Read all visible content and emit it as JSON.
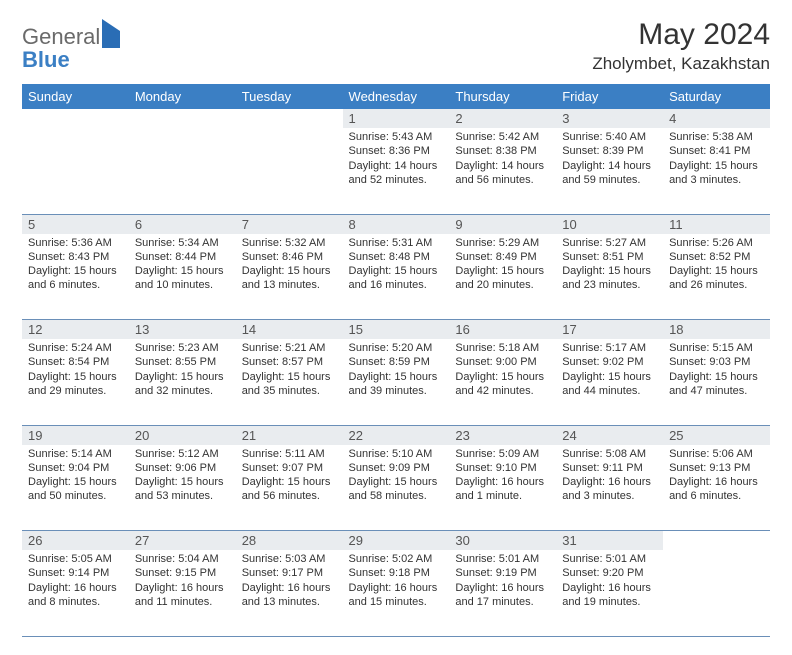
{
  "brand": {
    "part1": "General",
    "part2": "Blue"
  },
  "title": "May 2024",
  "location": "Zholymbet, Kazakhstan",
  "colors": {
    "header_bg": "#3b7fc4",
    "header_text": "#ffffff",
    "daynum_bg": "#e9ecef",
    "border": "#6a8fb8",
    "text": "#333333",
    "logo_gray": "#6a6a6a",
    "logo_blue": "#3b7fc4"
  },
  "weekdays": [
    "Sunday",
    "Monday",
    "Tuesday",
    "Wednesday",
    "Thursday",
    "Friday",
    "Saturday"
  ],
  "weeks": [
    [
      null,
      null,
      null,
      {
        "n": "1",
        "sr": "5:43 AM",
        "ss": "8:36 PM",
        "dl": "14 hours and 52 minutes."
      },
      {
        "n": "2",
        "sr": "5:42 AM",
        "ss": "8:38 PM",
        "dl": "14 hours and 56 minutes."
      },
      {
        "n": "3",
        "sr": "5:40 AM",
        "ss": "8:39 PM",
        "dl": "14 hours and 59 minutes."
      },
      {
        "n": "4",
        "sr": "5:38 AM",
        "ss": "8:41 PM",
        "dl": "15 hours and 3 minutes."
      }
    ],
    [
      {
        "n": "5",
        "sr": "5:36 AM",
        "ss": "8:43 PM",
        "dl": "15 hours and 6 minutes."
      },
      {
        "n": "6",
        "sr": "5:34 AM",
        "ss": "8:44 PM",
        "dl": "15 hours and 10 minutes."
      },
      {
        "n": "7",
        "sr": "5:32 AM",
        "ss": "8:46 PM",
        "dl": "15 hours and 13 minutes."
      },
      {
        "n": "8",
        "sr": "5:31 AM",
        "ss": "8:48 PM",
        "dl": "15 hours and 16 minutes."
      },
      {
        "n": "9",
        "sr": "5:29 AM",
        "ss": "8:49 PM",
        "dl": "15 hours and 20 minutes."
      },
      {
        "n": "10",
        "sr": "5:27 AM",
        "ss": "8:51 PM",
        "dl": "15 hours and 23 minutes."
      },
      {
        "n": "11",
        "sr": "5:26 AM",
        "ss": "8:52 PM",
        "dl": "15 hours and 26 minutes."
      }
    ],
    [
      {
        "n": "12",
        "sr": "5:24 AM",
        "ss": "8:54 PM",
        "dl": "15 hours and 29 minutes."
      },
      {
        "n": "13",
        "sr": "5:23 AM",
        "ss": "8:55 PM",
        "dl": "15 hours and 32 minutes."
      },
      {
        "n": "14",
        "sr": "5:21 AM",
        "ss": "8:57 PM",
        "dl": "15 hours and 35 minutes."
      },
      {
        "n": "15",
        "sr": "5:20 AM",
        "ss": "8:59 PM",
        "dl": "15 hours and 39 minutes."
      },
      {
        "n": "16",
        "sr": "5:18 AM",
        "ss": "9:00 PM",
        "dl": "15 hours and 42 minutes."
      },
      {
        "n": "17",
        "sr": "5:17 AM",
        "ss": "9:02 PM",
        "dl": "15 hours and 44 minutes."
      },
      {
        "n": "18",
        "sr": "5:15 AM",
        "ss": "9:03 PM",
        "dl": "15 hours and 47 minutes."
      }
    ],
    [
      {
        "n": "19",
        "sr": "5:14 AM",
        "ss": "9:04 PM",
        "dl": "15 hours and 50 minutes."
      },
      {
        "n": "20",
        "sr": "5:12 AM",
        "ss": "9:06 PM",
        "dl": "15 hours and 53 minutes."
      },
      {
        "n": "21",
        "sr": "5:11 AM",
        "ss": "9:07 PM",
        "dl": "15 hours and 56 minutes."
      },
      {
        "n": "22",
        "sr": "5:10 AM",
        "ss": "9:09 PM",
        "dl": "15 hours and 58 minutes."
      },
      {
        "n": "23",
        "sr": "5:09 AM",
        "ss": "9:10 PM",
        "dl": "16 hours and 1 minute."
      },
      {
        "n": "24",
        "sr": "5:08 AM",
        "ss": "9:11 PM",
        "dl": "16 hours and 3 minutes."
      },
      {
        "n": "25",
        "sr": "5:06 AM",
        "ss": "9:13 PM",
        "dl": "16 hours and 6 minutes."
      }
    ],
    [
      {
        "n": "26",
        "sr": "5:05 AM",
        "ss": "9:14 PM",
        "dl": "16 hours and 8 minutes."
      },
      {
        "n": "27",
        "sr": "5:04 AM",
        "ss": "9:15 PM",
        "dl": "16 hours and 11 minutes."
      },
      {
        "n": "28",
        "sr": "5:03 AM",
        "ss": "9:17 PM",
        "dl": "16 hours and 13 minutes."
      },
      {
        "n": "29",
        "sr": "5:02 AM",
        "ss": "9:18 PM",
        "dl": "16 hours and 15 minutes."
      },
      {
        "n": "30",
        "sr": "5:01 AM",
        "ss": "9:19 PM",
        "dl": "16 hours and 17 minutes."
      },
      {
        "n": "31",
        "sr": "5:01 AM",
        "ss": "9:20 PM",
        "dl": "16 hours and 19 minutes."
      },
      null
    ]
  ],
  "labels": {
    "sunrise": "Sunrise:",
    "sunset": "Sunset:",
    "daylight": "Daylight:"
  }
}
